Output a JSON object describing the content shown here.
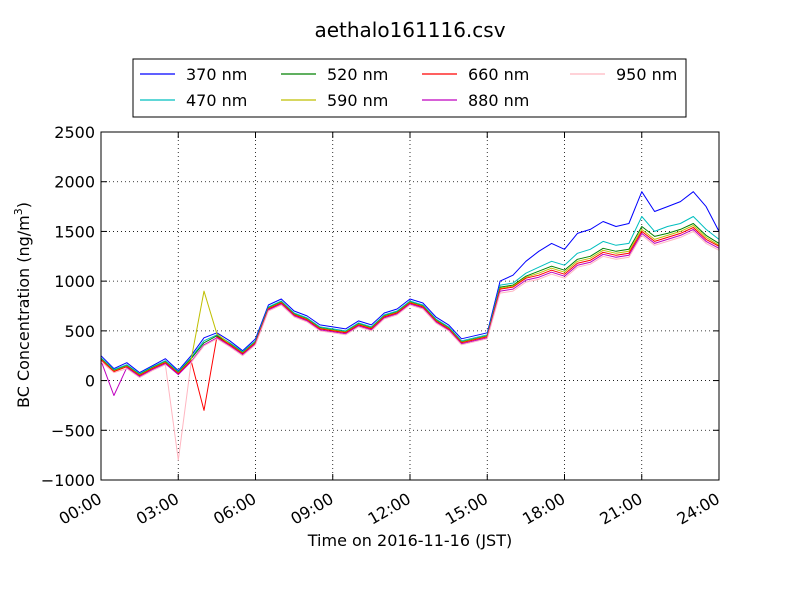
{
  "chart_data": {
    "type": "line",
    "title": "aethalo161116.csv",
    "xlabel": "Time on 2016-11-16 (JST)",
    "ylabel_main": "BC Concentration (ng/m",
    "ylabel_sup": "3",
    "ylabel_tail": ")",
    "xlim": [
      "00:00",
      "24:00"
    ],
    "ylim": [
      -1000,
      2500
    ],
    "grid": true,
    "legend_position": "top-center",
    "x_ticks": [
      "00:00",
      "03:00",
      "06:00",
      "09:00",
      "12:00",
      "15:00",
      "18:00",
      "21:00",
      "24:00"
    ],
    "y_ticks": [
      -1000,
      -500,
      0,
      500,
      1000,
      1500,
      2000,
      2500
    ],
    "y_tick_labels": [
      "−1000",
      "−500",
      "0",
      "500",
      "1000",
      "1500",
      "2000",
      "2500"
    ],
    "x": [
      "00:00",
      "00:30",
      "01:00",
      "01:30",
      "02:00",
      "02:30",
      "03:00",
      "03:30",
      "04:00",
      "04:30",
      "05:00",
      "05:30",
      "06:00",
      "06:30",
      "07:00",
      "07:30",
      "08:00",
      "08:30",
      "09:00",
      "09:30",
      "10:00",
      "10:30",
      "11:00",
      "11:30",
      "12:00",
      "12:30",
      "13:00",
      "13:30",
      "14:00",
      "14:30",
      "15:00",
      "15:30",
      "16:00",
      "16:30",
      "17:00",
      "17:30",
      "18:00",
      "18:30",
      "19:00",
      "19:30",
      "20:00",
      "20:30",
      "21:00",
      "21:30",
      "22:00",
      "22:30",
      "23:00",
      "23:30",
      "24:00"
    ],
    "series": [
      {
        "name": "370 nm",
        "color": "#0000ff",
        "values": [
          250,
          120,
          180,
          80,
          150,
          220,
          100,
          250,
          430,
          480,
          400,
          300,
          420,
          760,
          820,
          700,
          650,
          560,
          540,
          520,
          600,
          560,
          680,
          720,
          820,
          780,
          640,
          560,
          420,
          450,
          480,
          1000,
          1060,
          1200,
          1300,
          1380,
          1320,
          1480,
          1520,
          1600,
          1550,
          1580,
          1900,
          1700,
          1750,
          1800,
          1900,
          1750,
          1500
        ]
      },
      {
        "name": "470 nm",
        "color": "#00bfbf",
        "values": [
          230,
          110,
          160,
          70,
          140,
          200,
          90,
          230,
          400,
          460,
          380,
          290,
          400,
          740,
          800,
          680,
          630,
          540,
          520,
          500,
          580,
          540,
          660,
          700,
          800,
          760,
          620,
          540,
          400,
          430,
          460,
          960,
          980,
          1080,
          1140,
          1200,
          1160,
          1280,
          1320,
          1400,
          1360,
          1380,
          1650,
          1500,
          1550,
          1580,
          1650,
          1520,
          1420
        ]
      },
      {
        "name": "520 nm",
        "color": "#008000",
        "values": [
          220,
          100,
          150,
          60,
          130,
          190,
          80,
          220,
          380,
          450,
          370,
          280,
          390,
          730,
          790,
          670,
          620,
          530,
          510,
          490,
          570,
          530,
          650,
          690,
          790,
          750,
          610,
          530,
          390,
          420,
          450,
          940,
          960,
          1050,
          1100,
          1150,
          1110,
          1220,
          1250,
          1330,
          1300,
          1320,
          1550,
          1450,
          1480,
          1520,
          1580,
          1460,
          1380
        ]
      },
      {
        "name": "590 nm",
        "color": "#bfbf00",
        "values": [
          215,
          95,
          145,
          55,
          125,
          185,
          75,
          210,
          900,
          470,
          365,
          275,
          385,
          725,
          785,
          665,
          615,
          525,
          505,
          485,
          565,
          525,
          645,
          685,
          785,
          745,
          605,
          525,
          385,
          415,
          445,
          930,
          950,
          1040,
          1080,
          1130,
          1090,
          1200,
          1230,
          1310,
          1280,
          1300,
          1520,
          1420,
          1460,
          1500,
          1560,
          1440,
          1360
        ]
      },
      {
        "name": "660 nm",
        "color": "#ff0000",
        "values": [
          210,
          90,
          140,
          50,
          120,
          180,
          70,
          200,
          -300,
          440,
          360,
          270,
          380,
          720,
          780,
          660,
          610,
          520,
          500,
          480,
          560,
          520,
          640,
          680,
          780,
          740,
          600,
          520,
          380,
          410,
          440,
          920,
          940,
          1030,
          1060,
          1110,
          1070,
          1180,
          1210,
          1290,
          1260,
          1280,
          1500,
          1400,
          1440,
          1480,
          1540,
          1420,
          1350
        ]
      },
      {
        "name": "880 nm",
        "color": "#bf00bf",
        "values": [
          200,
          -150,
          130,
          40,
          110,
          170,
          60,
          190,
          360,
          430,
          350,
          260,
          370,
          710,
          770,
          650,
          600,
          510,
          490,
          470,
          550,
          510,
          630,
          670,
          770,
          730,
          590,
          510,
          370,
          400,
          430,
          900,
          920,
          1010,
          1040,
          1090,
          1050,
          1160,
          1190,
          1270,
          1240,
          1260,
          1480,
          1380,
          1420,
          1460,
          1520,
          1400,
          1330
        ]
      },
      {
        "name": "950 nm",
        "color": "#ffb6c1",
        "values": [
          190,
          80,
          120,
          30,
          100,
          160,
          -800,
          180,
          350,
          420,
          340,
          250,
          360,
          700,
          760,
          640,
          590,
          500,
          480,
          460,
          540,
          500,
          620,
          660,
          760,
          720,
          580,
          500,
          360,
          390,
          420,
          880,
          900,
          990,
          1020,
          1070,
          1030,
          1140,
          1170,
          1250,
          1220,
          1240,
          1460,
          1360,
          1400,
          1440,
          1500,
          1380,
          1310
        ]
      }
    ]
  }
}
